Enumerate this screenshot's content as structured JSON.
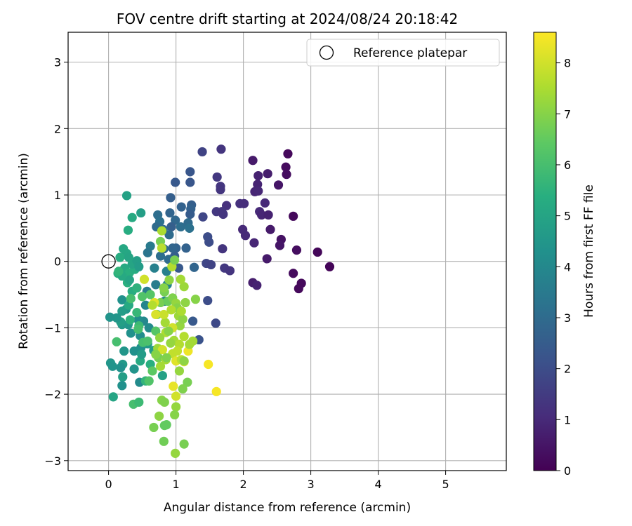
{
  "chart_data": {
    "type": "scatter",
    "title": "FOV centre drift starting at 2024/08/24 20:18:42",
    "xlabel": "Angular distance from reference (arcmin)",
    "ylabel": "Rotation from reference (arcmin)",
    "xlim": [
      -0.6,
      5.9
    ],
    "ylim": [
      -3.15,
      3.45
    ],
    "xticks": [
      0,
      1,
      2,
      3,
      4,
      5
    ],
    "yticks": [
      -3,
      -2,
      -1,
      0,
      1,
      2,
      3
    ],
    "grid": true,
    "legend": {
      "placement": "upper-right",
      "entries": [
        "Reference platepar"
      ]
    },
    "reference_point": {
      "x": 0,
      "y": 0
    },
    "colorbar": {
      "label": "Hours from first FF file",
      "range": [
        0,
        8.6
      ],
      "ticks": [
        0,
        1,
        2,
        3,
        4,
        5,
        6,
        7,
        8
      ],
      "colormap": "viridis"
    },
    "points": [
      {
        "x": 2.66,
        "y": 1.62,
        "c": 0.2
      },
      {
        "x": 2.63,
        "y": 1.42,
        "c": 0.25
      },
      {
        "x": 2.64,
        "y": 1.31,
        "c": 0.3
      },
      {
        "x": 2.14,
        "y": 1.52,
        "c": 0.6
      },
      {
        "x": 2.36,
        "y": 1.32,
        "c": 0.7
      },
      {
        "x": 2.22,
        "y": 1.29,
        "c": 0.8
      },
      {
        "x": 2.21,
        "y": 1.16,
        "c": 0.85
      },
      {
        "x": 2.52,
        "y": 1.15,
        "c": 0.5
      },
      {
        "x": 2.17,
        "y": 1.05,
        "c": 0.9
      },
      {
        "x": 2.22,
        "y": 1.06,
        "c": 0.95
      },
      {
        "x": 2.32,
        "y": 0.88,
        "c": 1.0
      },
      {
        "x": 1.95,
        "y": 0.87,
        "c": 1.2
      },
      {
        "x": 2.01,
        "y": 0.87,
        "c": 1.1
      },
      {
        "x": 2.24,
        "y": 0.75,
        "c": 1.0
      },
      {
        "x": 2.27,
        "y": 0.7,
        "c": 0.9
      },
      {
        "x": 2.37,
        "y": 0.7,
        "c": 0.8
      },
      {
        "x": 2.74,
        "y": 0.68,
        "c": 0.2
      },
      {
        "x": 2.4,
        "y": 0.48,
        "c": 0.6
      },
      {
        "x": 1.99,
        "y": 0.48,
        "c": 1.0
      },
      {
        "x": 2.03,
        "y": 0.39,
        "c": 1.0
      },
      {
        "x": 2.16,
        "y": 0.28,
        "c": 0.9
      },
      {
        "x": 2.56,
        "y": 0.33,
        "c": 0.4
      },
      {
        "x": 2.54,
        "y": 0.24,
        "c": 0.5
      },
      {
        "x": 2.79,
        "y": 0.17,
        "c": 0.3
      },
      {
        "x": 3.1,
        "y": 0.14,
        "c": 0.15
      },
      {
        "x": 3.28,
        "y": -0.08,
        "c": 0.1
      },
      {
        "x": 2.74,
        "y": -0.18,
        "c": 0.25
      },
      {
        "x": 2.86,
        "y": -0.33,
        "c": 0.2
      },
      {
        "x": 2.82,
        "y": -0.41,
        "c": 0.2
      },
      {
        "x": 2.14,
        "y": -0.32,
        "c": 0.7
      },
      {
        "x": 2.2,
        "y": -0.36,
        "c": 0.8
      },
      {
        "x": 2.35,
        "y": 0.04,
        "c": 0.6
      },
      {
        "x": 1.67,
        "y": 1.69,
        "c": 1.3
      },
      {
        "x": 1.39,
        "y": 1.65,
        "c": 1.7
      },
      {
        "x": 1.61,
        "y": 1.27,
        "c": 1.4
      },
      {
        "x": 1.66,
        "y": 1.13,
        "c": 1.35
      },
      {
        "x": 1.66,
        "y": 1.08,
        "c": 1.3
      },
      {
        "x": 1.75,
        "y": 0.84,
        "c": 1.2
      },
      {
        "x": 1.6,
        "y": 0.75,
        "c": 1.4
      },
      {
        "x": 1.68,
        "y": 0.75,
        "c": 1.35
      },
      {
        "x": 1.7,
        "y": 0.71,
        "c": 1.3
      },
      {
        "x": 1.69,
        "y": 0.19,
        "c": 1.3
      },
      {
        "x": 1.47,
        "y": 0.37,
        "c": 2.0
      },
      {
        "x": 1.49,
        "y": 0.29,
        "c": 2.0
      },
      {
        "x": 1.72,
        "y": -0.1,
        "c": 1.4
      },
      {
        "x": 1.8,
        "y": -0.14,
        "c": 1.3
      },
      {
        "x": 1.45,
        "y": -0.03,
        "c": 1.8
      },
      {
        "x": 1.52,
        "y": -0.05,
        "c": 1.7
      },
      {
        "x": 1.4,
        "y": 0.67,
        "c": 1.8
      },
      {
        "x": 1.47,
        "y": -0.59,
        "c": 2.0
      },
      {
        "x": 1.59,
        "y": -0.93,
        "c": 1.9
      },
      {
        "x": 1.34,
        "y": -1.18,
        "c": 2.2
      },
      {
        "x": 1.25,
        "y": -0.9,
        "c": 2.4
      },
      {
        "x": 1.21,
        "y": 1.35,
        "c": 2.3
      },
      {
        "x": 1.21,
        "y": 1.19,
        "c": 2.3
      },
      {
        "x": 0.99,
        "y": 1.19,
        "c": 2.4
      },
      {
        "x": 1.08,
        "y": 0.82,
        "c": 2.7
      },
      {
        "x": 1.23,
        "y": 0.85,
        "c": 2.6
      },
      {
        "x": 1.22,
        "y": 0.79,
        "c": 2.7
      },
      {
        "x": 1.21,
        "y": 0.71,
        "c": 2.5
      },
      {
        "x": 0.92,
        "y": 0.96,
        "c": 2.6
      },
      {
        "x": 0.91,
        "y": 0.73,
        "c": 2.8
      },
      {
        "x": 0.99,
        "y": 0.62,
        "c": 2.9
      },
      {
        "x": 1.07,
        "y": 0.52,
        "c": 3.1
      },
      {
        "x": 1.18,
        "y": 0.58,
        "c": 3.0
      },
      {
        "x": 1.2,
        "y": 0.5,
        "c": 3.2
      },
      {
        "x": 0.93,
        "y": 0.52,
        "c": 2.6
      },
      {
        "x": 0.73,
        "y": 0.7,
        "c": 3.1
      },
      {
        "x": 0.76,
        "y": 0.6,
        "c": 3.2
      },
      {
        "x": 0.71,
        "y": 0.52,
        "c": 3.0
      },
      {
        "x": 0.81,
        "y": 0.48,
        "c": 3.0
      },
      {
        "x": 0.9,
        "y": 0.4,
        "c": 3.0
      },
      {
        "x": 1.0,
        "y": 0.2,
        "c": 2.7
      },
      {
        "x": 1.15,
        "y": 0.2,
        "c": 2.7
      },
      {
        "x": 0.98,
        "y": 0.08,
        "c": 2.6
      },
      {
        "x": 0.95,
        "y": 0.2,
        "c": 2.8
      },
      {
        "x": 1.04,
        "y": -0.1,
        "c": 2.4
      },
      {
        "x": 1.27,
        "y": -0.09,
        "c": 2.8
      },
      {
        "x": 0.82,
        "y": 0.19,
        "c": 3.0
      },
      {
        "x": 0.89,
        "y": 0.03,
        "c": 3.0
      },
      {
        "x": 0.77,
        "y": 0.08,
        "c": 3.1
      },
      {
        "x": 0.62,
        "y": 0.23,
        "c": 3.5
      },
      {
        "x": 0.58,
        "y": 0.13,
        "c": 3.3
      },
      {
        "x": 0.48,
        "y": 0.73,
        "c": 4.8
      },
      {
        "x": 0.27,
        "y": 0.99,
        "c": 4.9
      },
      {
        "x": 0.35,
        "y": 0.66,
        "c": 5.2
      },
      {
        "x": 0.29,
        "y": 0.47,
        "c": 5.3
      },
      {
        "x": 0.68,
        "y": -0.1,
        "c": 3.7
      },
      {
        "x": 0.7,
        "y": -0.35,
        "c": 3.6
      },
      {
        "x": 0.86,
        "y": -0.15,
        "c": 3.7
      },
      {
        "x": 0.87,
        "y": -0.35,
        "c": 3.8
      },
      {
        "x": 0.83,
        "y": -0.6,
        "c": 3.8
      },
      {
        "x": 0.57,
        "y": -0.45,
        "c": 3.6
      },
      {
        "x": 0.55,
        "y": -0.66,
        "c": 3.9
      },
      {
        "x": 0.52,
        "y": -0.9,
        "c": 4.0
      },
      {
        "x": 0.6,
        "y": -1.0,
        "c": 4.1
      },
      {
        "x": 0.44,
        "y": -0.88,
        "c": 4.2
      },
      {
        "x": 0.47,
        "y": -1.12,
        "c": 4.2
      },
      {
        "x": 0.38,
        "y": -1.35,
        "c": 4.3
      },
      {
        "x": 0.48,
        "y": -1.3,
        "c": 4.3
      },
      {
        "x": 0.33,
        "y": -1.08,
        "c": 4.3
      },
      {
        "x": 0.29,
        "y": -0.95,
        "c": 4.5
      },
      {
        "x": 0.2,
        "y": -0.58,
        "c": 4.3
      },
      {
        "x": 0.26,
        "y": -0.72,
        "c": 4.5
      },
      {
        "x": 0.2,
        "y": -0.75,
        "c": 4.7
      },
      {
        "x": 0.2,
        "y": -0.95,
        "c": 4.6
      },
      {
        "x": 0.18,
        "y": -0.91,
        "c": 4.8
      },
      {
        "x": 0.12,
        "y": -0.85,
        "c": 4.5
      },
      {
        "x": 0.02,
        "y": -0.84,
        "c": 4.4
      },
      {
        "x": 0.23,
        "y": -1.35,
        "c": 4.5
      },
      {
        "x": 0.21,
        "y": -1.55,
        "c": 4.6
      },
      {
        "x": 0.18,
        "y": -1.6,
        "c": 4.3
      },
      {
        "x": 0.03,
        "y": -1.53,
        "c": 4.5
      },
      {
        "x": 0.06,
        "y": -1.58,
        "c": 4.4
      },
      {
        "x": 0.21,
        "y": -1.74,
        "c": 4.8
      },
      {
        "x": 0.2,
        "y": -1.87,
        "c": 4.3
      },
      {
        "x": 0.38,
        "y": -1.62,
        "c": 4.4
      },
      {
        "x": 0.46,
        "y": -1.82,
        "c": 4.1
      },
      {
        "x": 0.47,
        "y": -1.5,
        "c": 5.2
      },
      {
        "x": 0.55,
        "y": -1.8,
        "c": 5.6
      },
      {
        "x": 0.62,
        "y": -1.55,
        "c": 5.4
      },
      {
        "x": 0.8,
        "y": -1.72,
        "c": 4.9
      },
      {
        "x": 0.58,
        "y": -1.24,
        "c": 4.6
      },
      {
        "x": 0.67,
        "y": -1.34,
        "c": 4.7
      },
      {
        "x": 0.49,
        "y": -1.4,
        "c": 4.7
      },
      {
        "x": 0.07,
        "y": -2.04,
        "c": 5.0
      },
      {
        "x": 0.37,
        "y": -2.15,
        "c": 6.0
      },
      {
        "x": 0.45,
        "y": -2.12,
        "c": 5.8
      },
      {
        "x": 0.12,
        "y": -1.21,
        "c": 6.0
      },
      {
        "x": 0.45,
        "y": -0.97,
        "c": 5.8
      },
      {
        "x": 0.42,
        "y": -0.77,
        "c": 5.7
      },
      {
        "x": 0.32,
        "y": -0.88,
        "c": 5.5
      },
      {
        "x": 0.3,
        "y": -0.66,
        "c": 5.2
      },
      {
        "x": 0.35,
        "y": -0.45,
        "c": 5.3
      },
      {
        "x": 0.42,
        "y": -0.4,
        "c": 5.5
      },
      {
        "x": 0.28,
        "y": -0.32,
        "c": 5.4
      },
      {
        "x": 0.24,
        "y": -0.1,
        "c": 5.2
      },
      {
        "x": 0.31,
        "y": -0.17,
        "c": 5.4
      },
      {
        "x": 0.39,
        "y": -0.12,
        "c": 5.3
      },
      {
        "x": 0.35,
        "y": -0.04,
        "c": 5.0
      },
      {
        "x": 0.42,
        "y": 0.01,
        "c": 4.8
      },
      {
        "x": 0.45,
        "y": -0.08,
        "c": 4.7
      },
      {
        "x": 0.27,
        "y": 0.12,
        "c": 5.1
      },
      {
        "x": 0.22,
        "y": 0.19,
        "c": 5.1
      },
      {
        "x": 0.17,
        "y": 0.06,
        "c": 5.3
      },
      {
        "x": 0.3,
        "y": 0.06,
        "c": 5.0
      },
      {
        "x": 0.31,
        "y": -0.28,
        "c": 5.0
      },
      {
        "x": 0.14,
        "y": -0.18,
        "c": 5.4
      },
      {
        "x": 0.2,
        "y": -0.22,
        "c": 5.2
      },
      {
        "x": 0.15,
        "y": -0.15,
        "c": 5.6
      },
      {
        "x": 0.33,
        "y": -0.56,
        "c": 6.0
      },
      {
        "x": 0.5,
        "y": -0.53,
        "c": 6.2
      },
      {
        "x": 0.62,
        "y": -0.5,
        "c": 6.3
      },
      {
        "x": 0.44,
        "y": -1.02,
        "c": 6.0
      },
      {
        "x": 0.51,
        "y": -1.22,
        "c": 6.0
      },
      {
        "x": 0.58,
        "y": -1.2,
        "c": 6.1
      },
      {
        "x": 0.7,
        "y": -1.05,
        "c": 6.3
      },
      {
        "x": 0.72,
        "y": -0.8,
        "c": 6.5
      },
      {
        "x": 0.77,
        "y": -0.62,
        "c": 6.8
      },
      {
        "x": 0.83,
        "y": -0.46,
        "c": 6.8
      },
      {
        "x": 0.88,
        "y": -0.6,
        "c": 6.6
      },
      {
        "x": 0.95,
        "y": -0.55,
        "c": 6.9
      },
      {
        "x": 1.0,
        "y": -0.63,
        "c": 7.2
      },
      {
        "x": 1.02,
        "y": -0.7,
        "c": 7.0
      },
      {
        "x": 1.04,
        "y": -0.82,
        "c": 7.3
      },
      {
        "x": 1.06,
        "y": -0.97,
        "c": 7.2
      },
      {
        "x": 1.1,
        "y": -0.87,
        "c": 7.1
      },
      {
        "x": 1.12,
        "y": -0.38,
        "c": 7.3
      },
      {
        "x": 1.07,
        "y": -0.27,
        "c": 7.4
      },
      {
        "x": 0.9,
        "y": -0.28,
        "c": 7.1
      },
      {
        "x": 0.82,
        "y": -0.4,
        "c": 7.0
      },
      {
        "x": 0.77,
        "y": 0.3,
        "c": 6.8
      },
      {
        "x": 0.79,
        "y": 0.46,
        "c": 7.5
      },
      {
        "x": 0.79,
        "y": 0.2,
        "c": 7.7
      },
      {
        "x": 0.94,
        "y": -0.08,
        "c": 7.6
      },
      {
        "x": 0.98,
        "y": 0.02,
        "c": 6.8
      },
      {
        "x": 0.97,
        "y": -1.19,
        "c": 7.4
      },
      {
        "x": 0.85,
        "y": -1.07,
        "c": 7.5
      },
      {
        "x": 0.76,
        "y": -1.15,
        "c": 7.2
      },
      {
        "x": 0.73,
        "y": -1.31,
        "c": 7.3
      },
      {
        "x": 0.74,
        "y": -1.45,
        "c": 6.8
      },
      {
        "x": 0.77,
        "y": -1.58,
        "c": 7.4
      },
      {
        "x": 0.85,
        "y": -1.48,
        "c": 7.4
      },
      {
        "x": 0.8,
        "y": -1.33,
        "c": 8.0
      },
      {
        "x": 0.95,
        "y": -1.39,
        "c": 7.8
      },
      {
        "x": 1.0,
        "y": -1.5,
        "c": 8.2
      },
      {
        "x": 1.08,
        "y": -1.48,
        "c": 7.7
      },
      {
        "x": 1.12,
        "y": -1.51,
        "c": 8.3
      },
      {
        "x": 1.18,
        "y": -1.35,
        "c": 8.4
      },
      {
        "x": 1.2,
        "y": -1.25,
        "c": 7.4
      },
      {
        "x": 1.25,
        "y": -1.2,
        "c": 7.4
      },
      {
        "x": 1.12,
        "y": -1.13,
        "c": 7.6
      },
      {
        "x": 1.05,
        "y": -1.25,
        "c": 7.6
      },
      {
        "x": 1.02,
        "y": -1.35,
        "c": 7.8
      },
      {
        "x": 0.92,
        "y": -1.23,
        "c": 7.2
      },
      {
        "x": 0.95,
        "y": -1.0,
        "c": 8.0
      },
      {
        "x": 0.84,
        "y": -0.92,
        "c": 7.4
      },
      {
        "x": 0.82,
        "y": -0.8,
        "c": 7.9
      },
      {
        "x": 0.7,
        "y": -0.8,
        "c": 8.1
      },
      {
        "x": 0.68,
        "y": -0.62,
        "c": 8.2
      },
      {
        "x": 0.53,
        "y": -0.27,
        "c": 8.0
      },
      {
        "x": 0.65,
        "y": -0.66,
        "c": 7.6
      },
      {
        "x": 1.05,
        "y": -1.65,
        "c": 7.2
      },
      {
        "x": 1.12,
        "y": -1.5,
        "c": 7.1
      },
      {
        "x": 1.17,
        "y": -1.82,
        "c": 6.8
      },
      {
        "x": 1.1,
        "y": -1.92,
        "c": 6.9
      },
      {
        "x": 1.48,
        "y": -1.55,
        "c": 8.5
      },
      {
        "x": 1.6,
        "y": -1.96,
        "c": 8.5
      },
      {
        "x": 0.96,
        "y": -1.88,
        "c": 8.3
      },
      {
        "x": 1.0,
        "y": -2.03,
        "c": 8.0
      },
      {
        "x": 0.79,
        "y": -2.09,
        "c": 7.0
      },
      {
        "x": 0.83,
        "y": -2.12,
        "c": 6.9
      },
      {
        "x": 1.0,
        "y": -2.19,
        "c": 7.2
      },
      {
        "x": 0.98,
        "y": -2.31,
        "c": 7.0
      },
      {
        "x": 0.75,
        "y": -2.33,
        "c": 7.1
      },
      {
        "x": 0.83,
        "y": -2.47,
        "c": 6.5
      },
      {
        "x": 0.67,
        "y": -2.5,
        "c": 6.8
      },
      {
        "x": 0.86,
        "y": -2.46,
        "c": 6.5
      },
      {
        "x": 0.82,
        "y": -2.71,
        "c": 6.7
      },
      {
        "x": 1.12,
        "y": -2.75,
        "c": 6.8
      },
      {
        "x": 0.99,
        "y": -2.89,
        "c": 7.2
      },
      {
        "x": 1.29,
        "y": -0.57,
        "c": 7.0
      },
      {
        "x": 1.14,
        "y": -0.62,
        "c": 7.1
      },
      {
        "x": 1.08,
        "y": -0.75,
        "c": 7.5
      },
      {
        "x": 0.93,
        "y": -0.73,
        "c": 7.6
      },
      {
        "x": 0.89,
        "y": -1.05,
        "c": 7.0
      },
      {
        "x": 0.65,
        "y": -1.65,
        "c": 6.4
      },
      {
        "x": 0.6,
        "y": -1.8,
        "c": 6.2
      },
      {
        "x": 0.7,
        "y": -1.4,
        "c": 7.0
      },
      {
        "x": 0.86,
        "y": -1.45,
        "c": 6.9
      }
    ]
  }
}
